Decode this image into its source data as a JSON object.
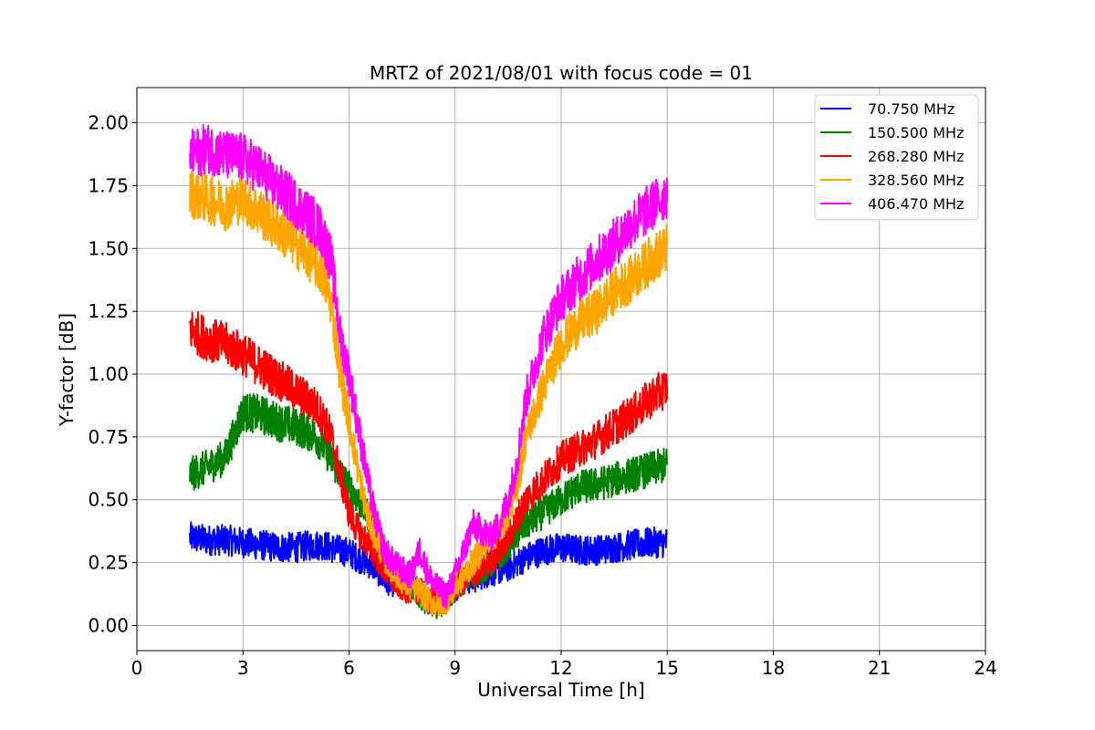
{
  "chart_data": {
    "type": "line",
    "title": "MRT2 of 2021/08/01 with focus code = 01",
    "xlabel": "Universal Time [h]",
    "ylabel": "Y-factor [dB]",
    "xlim": [
      0,
      24
    ],
    "ylim": [
      -0.1,
      2.14
    ],
    "xticks": [
      0,
      3,
      6,
      9,
      12,
      15,
      18,
      21,
      24
    ],
    "xtick_labels": [
      "0",
      "3",
      "6",
      "9",
      "12",
      "15",
      "18",
      "21",
      "24"
    ],
    "yticks": [
      0.0,
      0.25,
      0.5,
      0.75,
      1.0,
      1.25,
      1.5,
      1.75,
      2.0
    ],
    "ytick_labels": [
      "0.00",
      "0.25",
      "0.50",
      "0.75",
      "1.00",
      "1.25",
      "1.50",
      "1.75",
      "2.00"
    ],
    "grid": true,
    "legend_position": "top-right",
    "x": [
      1.5,
      2.0,
      2.5,
      3.0,
      3.5,
      4.0,
      4.5,
      5.0,
      5.25,
      5.5,
      5.75,
      6.0,
      6.25,
      6.5,
      6.75,
      7.0,
      7.25,
      7.5,
      7.75,
      8.0,
      8.25,
      8.5,
      8.75,
      9.0,
      9.25,
      9.5,
      9.75,
      10.0,
      10.25,
      10.5,
      10.75,
      11.0,
      11.5,
      12.0,
      12.5,
      13.0,
      13.5,
      14.0,
      14.5,
      15.0
    ],
    "series": [
      {
        "name": "70.750 MHz",
        "color": "#0000ff",
        "values": [
          0.35,
          0.34,
          0.34,
          0.33,
          0.32,
          0.31,
          0.31,
          0.32,
          0.32,
          0.31,
          0.3,
          0.29,
          0.27,
          0.25,
          0.23,
          0.18,
          0.17,
          0.16,
          0.15,
          0.14,
          0.1,
          0.1,
          0.12,
          0.15,
          0.18,
          0.18,
          0.2,
          0.21,
          0.22,
          0.23,
          0.25,
          0.27,
          0.3,
          0.31,
          0.3,
          0.3,
          0.31,
          0.32,
          0.33,
          0.33
        ]
      },
      {
        "name": "150.500 MHz",
        "color": "#008000",
        "values": [
          0.6,
          0.63,
          0.67,
          0.85,
          0.84,
          0.81,
          0.79,
          0.76,
          0.72,
          0.66,
          0.6,
          0.55,
          0.5,
          0.45,
          0.37,
          0.28,
          0.22,
          0.18,
          0.15,
          0.12,
          0.09,
          0.08,
          0.1,
          0.14,
          0.18,
          0.2,
          0.22,
          0.24,
          0.27,
          0.32,
          0.36,
          0.4,
          0.45,
          0.5,
          0.55,
          0.56,
          0.58,
          0.6,
          0.62,
          0.64
        ]
      },
      {
        "name": "268.280 MHz",
        "color": "#ff0000",
        "values": [
          1.18,
          1.14,
          1.12,
          1.08,
          1.03,
          0.98,
          0.93,
          0.88,
          0.83,
          0.75,
          0.6,
          0.45,
          0.38,
          0.33,
          0.28,
          0.22,
          0.18,
          0.15,
          0.14,
          0.14,
          0.1,
          0.1,
          0.12,
          0.15,
          0.18,
          0.2,
          0.23,
          0.26,
          0.3,
          0.35,
          0.42,
          0.5,
          0.58,
          0.66,
          0.7,
          0.74,
          0.79,
          0.84,
          0.9,
          0.95
        ]
      },
      {
        "name": "328.560 MHz",
        "color": "#ffa500",
        "values": [
          1.72,
          1.7,
          1.67,
          1.7,
          1.64,
          1.58,
          1.52,
          1.45,
          1.4,
          1.28,
          1.0,
          0.82,
          0.62,
          0.45,
          0.35,
          0.27,
          0.22,
          0.18,
          0.15,
          0.14,
          0.1,
          0.08,
          0.1,
          0.15,
          0.2,
          0.25,
          0.3,
          0.35,
          0.38,
          0.45,
          0.55,
          0.75,
          0.95,
          1.12,
          1.2,
          1.25,
          1.33,
          1.38,
          1.45,
          1.5
        ]
      },
      {
        "name": "406.470 MHz",
        "color": "#ff00ff",
        "values": [
          1.87,
          1.9,
          1.87,
          1.86,
          1.81,
          1.74,
          1.68,
          1.61,
          1.56,
          1.45,
          1.15,
          1.0,
          0.8,
          0.6,
          0.42,
          0.3,
          0.25,
          0.22,
          0.2,
          0.3,
          0.2,
          0.15,
          0.12,
          0.2,
          0.3,
          0.4,
          0.38,
          0.35,
          0.4,
          0.5,
          0.65,
          0.9,
          1.15,
          1.3,
          1.38,
          1.45,
          1.52,
          1.6,
          1.66,
          1.72
        ]
      }
    ]
  },
  "legend": {
    "items": [
      {
        "label": "70.750 MHz",
        "color": "#0000ff"
      },
      {
        "label": "150.500 MHz",
        "color": "#008000"
      },
      {
        "label": "268.280 MHz",
        "color": "#ff0000"
      },
      {
        "label": "328.560 MHz",
        "color": "#ffa500"
      },
      {
        "label": "406.470 MHz",
        "color": "#ff00ff"
      }
    ]
  }
}
